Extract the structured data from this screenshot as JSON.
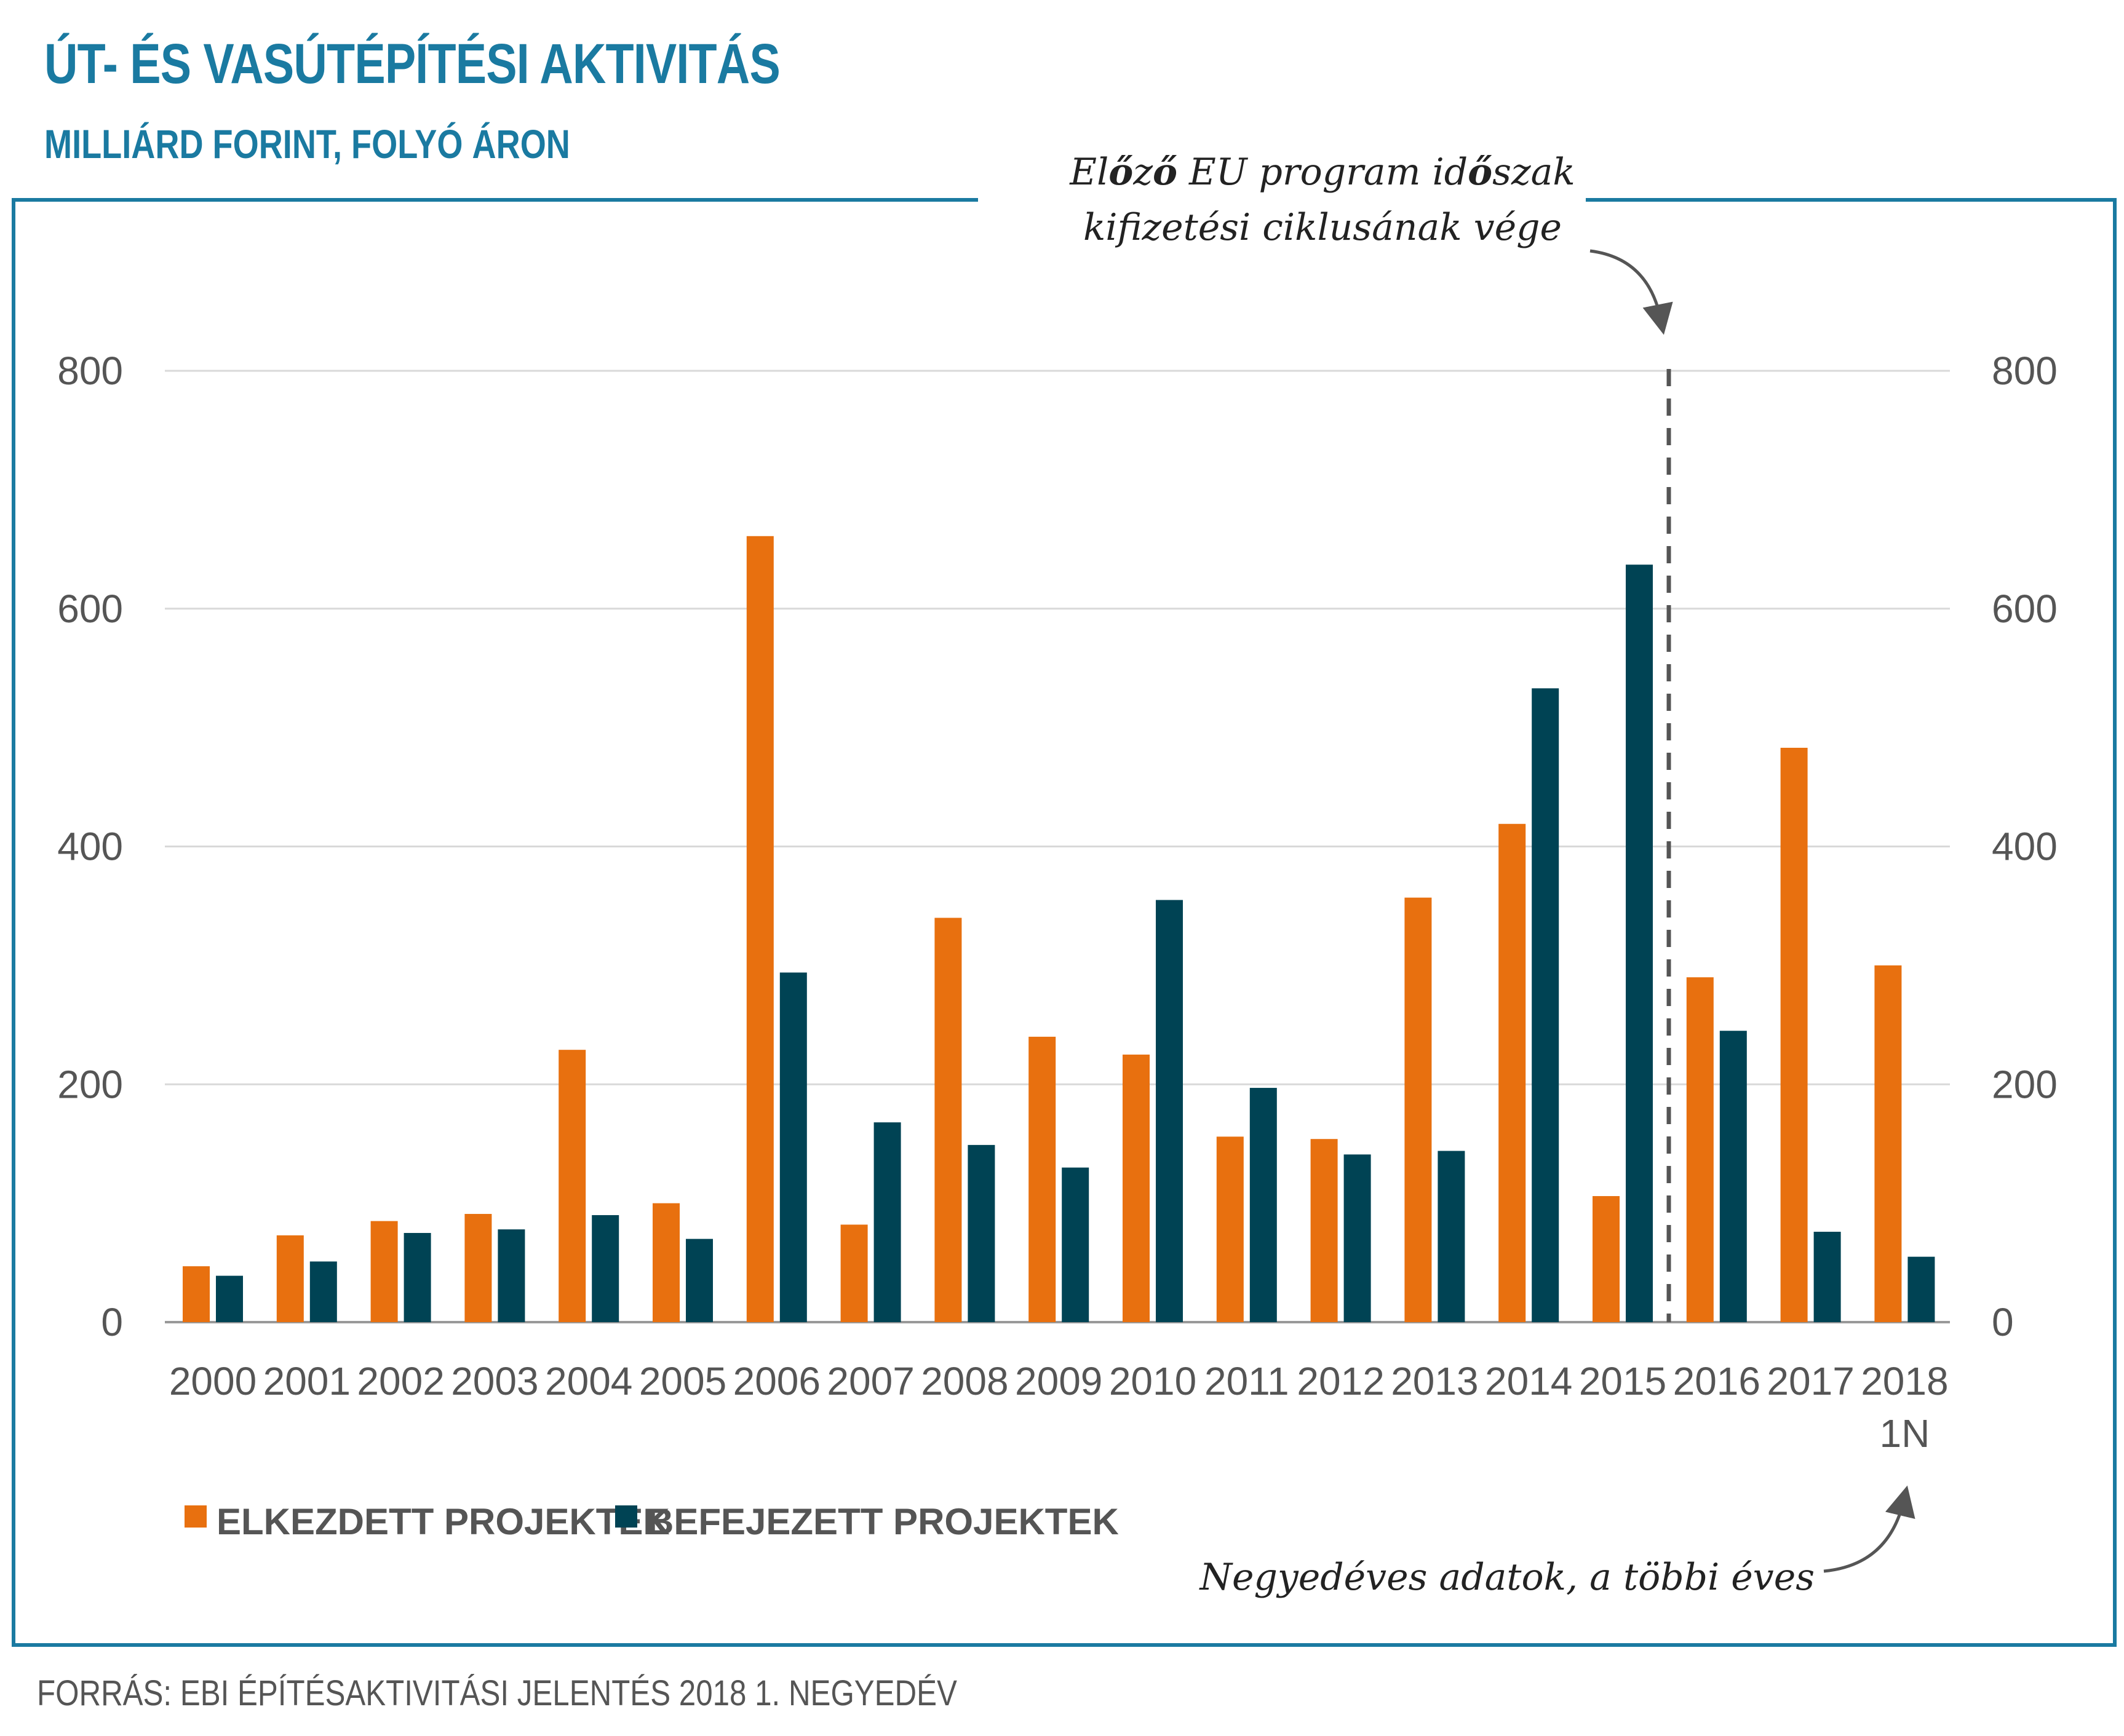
{
  "header": {
    "title": "ÚT- ÉS VASÚTÉPÍTÉSI AKTIVITÁS",
    "subtitle": "MILLIÁRD FORINT, FOLYÓ ÁRON"
  },
  "footer": {
    "source": "FORRÁS: EBI ÉPÍTÉSAKTIVITÁSI JELENTÉS 2018 1. NEGYEDÉV"
  },
  "annotations": {
    "eu_line1_pre": "El",
    "eu_line1_o1": "ő",
    "eu_line1_mid1": "z",
    "eu_line1_o2": "ő",
    "eu_line1_mid2": " EU program id",
    "eu_line1_o3": "ő",
    "eu_line1_post": "szak",
    "eu_line2": "kifizetési ciklusának vége",
    "quarterly_note": "Negyedéves adatok, a többi éves"
  },
  "colors": {
    "started": "#e8700f",
    "finished": "#004354",
    "frame": "#1a7aa1",
    "grid": "#d9d9d9"
  },
  "chart_data": {
    "type": "bar",
    "categories": [
      "2000",
      "2001",
      "2002",
      "2003",
      "2004",
      "2005",
      "2006",
      "2007",
      "2008",
      "2009",
      "2010",
      "2011",
      "2012",
      "2013",
      "2014",
      "2015",
      "2016",
      "2017",
      "2018\n1N"
    ],
    "series": [
      {
        "name": "ELKEZDETT PROJEKTEK",
        "values": [
          47,
          73,
          85,
          91,
          229,
          100,
          661,
          82,
          340,
          240,
          225,
          156,
          154,
          357,
          419,
          106,
          290,
          483,
          300
        ]
      },
      {
        "name": "BEFEJEZETT PROJEKTEK",
        "values": [
          39,
          51,
          75,
          78,
          90,
          70,
          294,
          168,
          149,
          130,
          355,
          197,
          141,
          144,
          533,
          637,
          245,
          76,
          55
        ]
      }
    ],
    "yticks": [
      0,
      200,
      400,
      600,
      800
    ],
    "ylim": [
      0,
      800
    ],
    "title": "ÚT- ÉS VASÚTÉPÍTÉSI AKTIVITÁS",
    "ylabel": "",
    "xlabel": "",
    "legend_position": "bottom-left",
    "vertical_marker_after": "2015"
  }
}
